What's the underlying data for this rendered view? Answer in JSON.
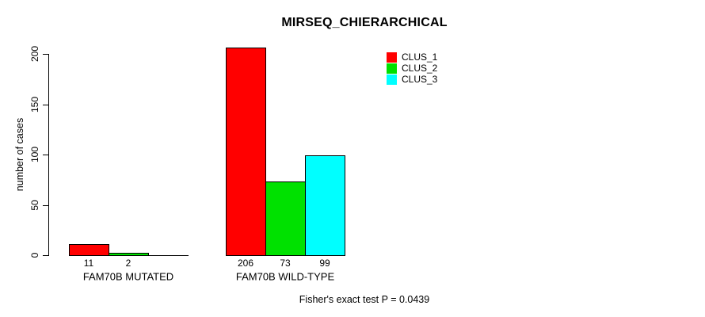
{
  "chart_data": {
    "type": "bar",
    "title": "MIRSEQ_CHIERARCHICAL",
    "ylabel": "number of cases",
    "xlabel": "",
    "ylim": [
      0,
      200
    ],
    "yticks": [
      0,
      50,
      100,
      150,
      200
    ],
    "grid": false,
    "legend_position": "top-right",
    "background": "#ffffff",
    "axis_color": "#000000",
    "categories": [
      "FAM70B MUTATED",
      "FAM70B WILD-TYPE"
    ],
    "series": [
      {
        "name": "CLUS_1",
        "color": "#ff0000",
        "values": [
          11,
          206
        ]
      },
      {
        "name": "CLUS_2",
        "color": "#00e100",
        "values": [
          2,
          73
        ]
      },
      {
        "name": "CLUS_3",
        "color": "#00ffff",
        "values": [
          0,
          99
        ]
      }
    ],
    "bar_value_labels": [
      [
        "11",
        "2",
        ""
      ],
      [
        "206",
        "73",
        "99"
      ]
    ],
    "annotation": "Fisher's exact test P = 0.0439"
  }
}
